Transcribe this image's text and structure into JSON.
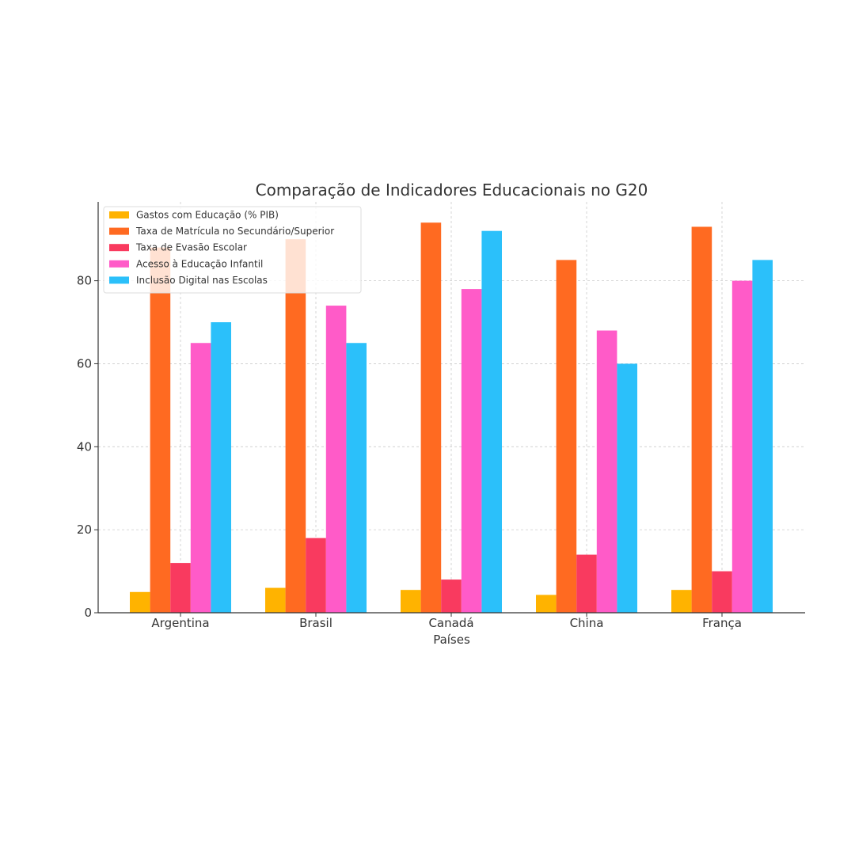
{
  "chart_data": {
    "type": "bar",
    "title": "Comparação de Indicadores Educacionais no G20",
    "xlabel": "Países",
    "ylabel": "",
    "categories": [
      "Argentina",
      "Brasil",
      "Canadá",
      "China",
      "França"
    ],
    "ylim": [
      0,
      99
    ],
    "yticks": [
      0,
      20,
      40,
      60,
      80
    ],
    "grid": true,
    "legend_position": "top-left",
    "series": [
      {
        "name": "Gastos com Educação (% PIB)",
        "color": "#FFB300",
        "values": [
          5.0,
          6.0,
          5.5,
          4.3,
          5.5
        ]
      },
      {
        "name": "Taxa de Matrícula no Secundário/Superior",
        "color": "#FF6A21",
        "values": [
          88,
          90,
          94,
          85,
          93
        ]
      },
      {
        "name": "Taxa de Evasão Escolar",
        "color": "#F93A5F",
        "values": [
          12,
          18,
          8,
          14,
          10
        ]
      },
      {
        "name": "Acesso à Educação Infantil",
        "color": "#FF5BC8",
        "values": [
          65,
          74,
          78,
          68,
          80
        ]
      },
      {
        "name": "Inclusão Digital nas Escolas",
        "color": "#2BC0FA",
        "values": [
          70,
          65,
          92,
          60,
          85
        ]
      }
    ]
  }
}
